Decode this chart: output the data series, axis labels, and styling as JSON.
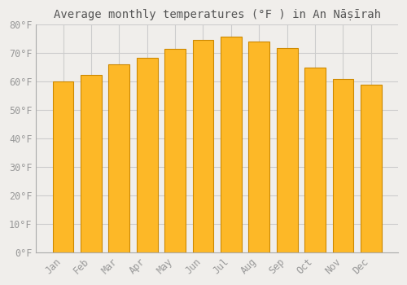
{
  "title": "Average monthly temperatures (°F ) in An Nāṣīrah",
  "months": [
    "Jan",
    "Feb",
    "Mar",
    "Apr",
    "May",
    "Jun",
    "Jul",
    "Aug",
    "Sep",
    "Oct",
    "Nov",
    "Dec"
  ],
  "values": [
    60.0,
    62.5,
    66.0,
    68.5,
    71.5,
    74.8,
    75.8,
    74.0,
    71.8,
    65.0,
    61.0,
    59.0
  ],
  "bar_color": "#FDB827",
  "bar_edge_color": "#CC8800",
  "background_color": "#f0eeeb",
  "plot_bg_color": "#f0eeeb",
  "grid_color": "#cccccc",
  "title_color": "#555555",
  "tick_color": "#999999",
  "ylim": [
    0,
    80
  ],
  "ytick_step": 10,
  "title_fontsize": 10,
  "tick_fontsize": 8.5
}
